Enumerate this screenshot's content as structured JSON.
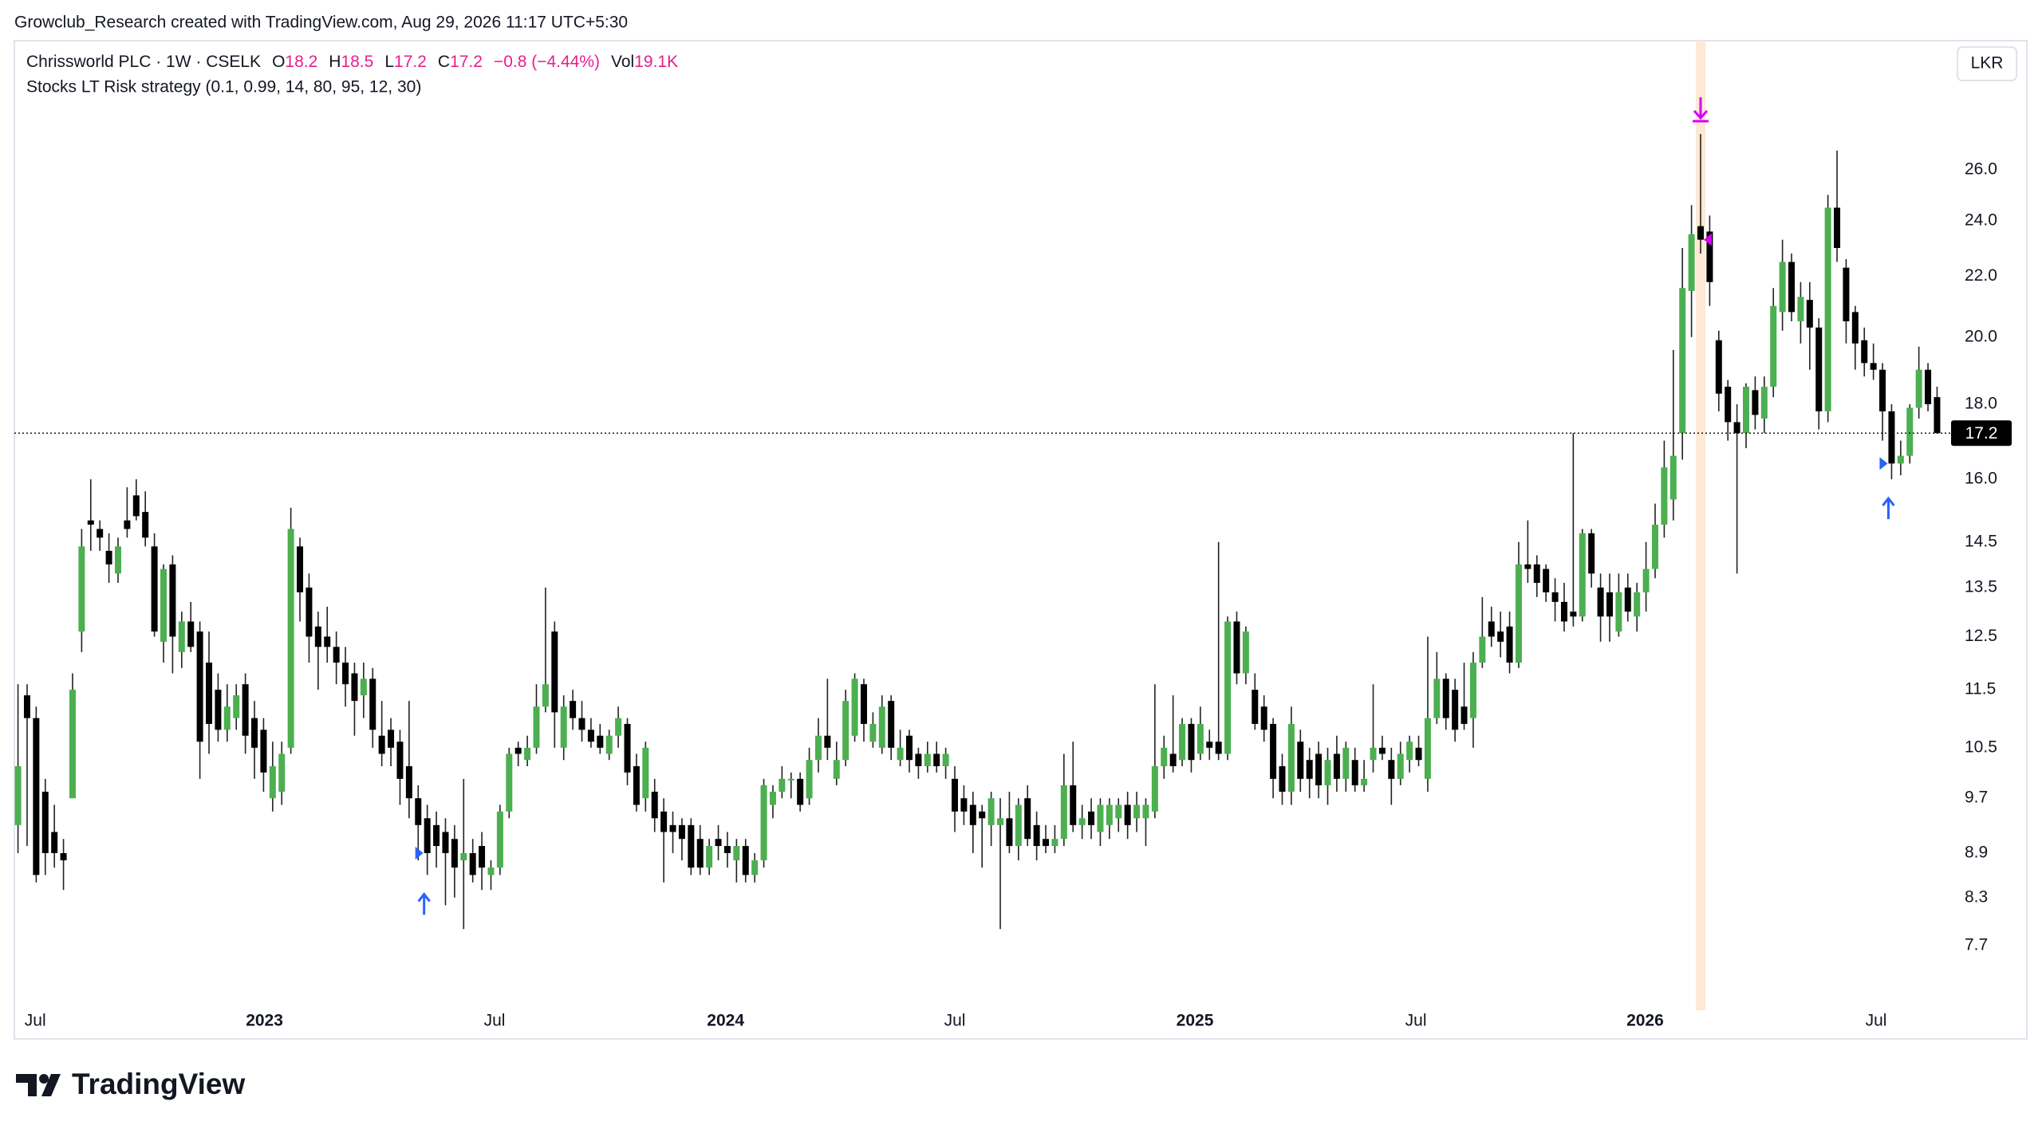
{
  "credit": "Growclub_Research created with TradingView.com, Aug 29, 2026 11:17 UTC+5:30",
  "chart_data": {
    "type": "candlestick",
    "title": "Chrissworld PLC · 1W · CSELK",
    "ohlc_labels": [
      "O",
      "H",
      "L",
      "C"
    ],
    "change": "−0.8 (−4.44%)",
    "volume_label": "Vol",
    "volume": "19.1K",
    "strategy": "Stocks LT Risk strategy (0.1, 0.99, 14, 80, 95, 12, 30)",
    "currency": "LKR",
    "log": true,
    "grid": false,
    "up_color": "#4caf50",
    "down_color": "#000000",
    "wick_color": "#222222",
    "header_value_color": "#e91e8c",
    "entry_color": "#2962ff",
    "exit_color": "#d500f9",
    "exit_band_color": "#fde9d4",
    "ylim": [
      7.07,
      31.8
    ],
    "yticks": [
      7.7,
      8.3,
      8.9,
      9.7,
      10.5,
      11.5,
      12.5,
      13.5,
      14.5,
      {
        "value": 16,
        "label": "16.0"
      },
      {
        "value": 18,
        "label": "18.0"
      },
      {
        "value": 20,
        "label": "20.0"
      },
      {
        "value": 22,
        "label": "22.0"
      },
      {
        "value": 24,
        "label": "24.0"
      },
      {
        "value": 26,
        "label": "26.0"
      }
    ],
    "xlim": [
      -0.4,
      212.1
    ],
    "xticks": [
      {
        "value": 1.9,
        "label": "Jul"
      },
      {
        "value": 27.1,
        "label": "2023"
      },
      {
        "value": 52.4,
        "label": "Jul"
      },
      {
        "value": 77.8,
        "label": "2024"
      },
      {
        "value": 103.0,
        "label": "Jul"
      },
      {
        "value": 129.4,
        "label": "2025"
      },
      {
        "value": 153.7,
        "label": "Jul"
      },
      {
        "value": 178.9,
        "label": "2026"
      },
      {
        "value": 204.3,
        "label": "Jul"
      }
    ],
    "entries": [
      45,
      206
    ],
    "exits": [
      185
    ],
    "ohlc": [
      [
        9.3,
        11.6,
        8.9,
        10.2
      ],
      [
        11.4,
        11.6,
        9.0,
        11.0
      ],
      [
        11.0,
        11.2,
        8.5,
        8.6
      ],
      [
        9.8,
        10.0,
        8.6,
        8.9
      ],
      [
        9.2,
        9.6,
        8.7,
        8.9
      ],
      [
        8.9,
        9.1,
        8.4,
        8.8
      ],
      [
        9.7,
        11.8,
        9.7,
        11.5
      ],
      [
        12.6,
        14.8,
        12.2,
        14.4
      ],
      [
        15.0,
        16.0,
        14.3,
        14.9
      ],
      [
        14.8,
        15.0,
        14.3,
        14.6
      ],
      [
        14.3,
        14.7,
        13.6,
        14.0
      ],
      [
        13.8,
        14.6,
        13.6,
        14.4
      ],
      [
        15.0,
        15.8,
        14.6,
        14.8
      ],
      [
        15.6,
        16.0,
        15.0,
        15.1
      ],
      [
        15.2,
        15.7,
        14.4,
        14.6
      ],
      [
        14.4,
        14.7,
        12.5,
        12.6
      ],
      [
        12.4,
        14.0,
        12.0,
        13.9
      ],
      [
        14.0,
        14.2,
        11.8,
        12.5
      ],
      [
        12.2,
        13.0,
        11.9,
        12.8
      ],
      [
        12.8,
        13.2,
        12.2,
        12.3
      ],
      [
        12.6,
        12.8,
        10.0,
        10.6
      ],
      [
        12.0,
        12.6,
        10.4,
        10.9
      ],
      [
        11.5,
        11.8,
        10.6,
        10.8
      ],
      [
        10.8,
        11.6,
        10.6,
        11.2
      ],
      [
        11.0,
        11.6,
        10.8,
        11.4
      ],
      [
        11.6,
        11.8,
        10.4,
        10.7
      ],
      [
        11.0,
        11.3,
        10.0,
        10.5
      ],
      [
        10.8,
        11.0,
        9.8,
        10.1
      ],
      [
        9.7,
        10.6,
        9.5,
        10.2
      ],
      [
        9.8,
        10.6,
        9.6,
        10.4
      ],
      [
        10.5,
        15.3,
        10.4,
        14.8
      ],
      [
        14.4,
        14.6,
        12.8,
        13.4
      ],
      [
        13.5,
        13.8,
        12.0,
        12.5
      ],
      [
        12.7,
        13.0,
        11.5,
        12.3
      ],
      [
        12.5,
        13.1,
        12.0,
        12.3
      ],
      [
        12.3,
        12.6,
        11.6,
        12.0
      ],
      [
        12.0,
        12.3,
        11.2,
        11.6
      ],
      [
        11.8,
        12.0,
        10.7,
        11.3
      ],
      [
        11.4,
        12.0,
        11.0,
        11.7
      ],
      [
        11.7,
        11.9,
        10.5,
        10.8
      ],
      [
        10.7,
        11.3,
        10.2,
        10.4
      ],
      [
        10.8,
        11.0,
        10.2,
        10.5
      ],
      [
        10.6,
        10.8,
        9.6,
        10.0
      ],
      [
        10.2,
        11.3,
        9.4,
        9.7
      ],
      [
        9.7,
        9.9,
        8.8,
        9.3
      ],
      [
        9.4,
        9.6,
        8.6,
        8.9
      ],
      [
        9.3,
        9.5,
        8.7,
        9.0
      ],
      [
        9.2,
        9.4,
        8.2,
        8.9
      ],
      [
        9.1,
        9.3,
        8.3,
        8.7
      ],
      [
        8.8,
        10.0,
        7.9,
        8.9
      ],
      [
        8.9,
        9.1,
        8.5,
        8.6
      ],
      [
        9.0,
        9.2,
        8.4,
        8.7
      ],
      [
        8.6,
        8.8,
        8.4,
        8.7
      ],
      [
        8.7,
        9.6,
        8.6,
        9.5
      ],
      [
        9.5,
        10.5,
        9.4,
        10.4
      ],
      [
        10.5,
        10.6,
        10.2,
        10.4
      ],
      [
        10.3,
        10.7,
        10.2,
        10.5
      ],
      [
        10.5,
        11.6,
        10.4,
        11.2
      ],
      [
        11.2,
        13.5,
        11.1,
        11.6
      ],
      [
        12.6,
        12.8,
        10.5,
        11.1
      ],
      [
        10.5,
        11.4,
        10.3,
        11.2
      ],
      [
        11.3,
        11.5,
        10.8,
        11.0
      ],
      [
        11.0,
        11.3,
        10.6,
        10.8
      ],
      [
        10.8,
        11.0,
        10.5,
        10.6
      ],
      [
        10.7,
        10.9,
        10.4,
        10.5
      ],
      [
        10.4,
        10.8,
        10.3,
        10.7
      ],
      [
        10.7,
        11.2,
        10.5,
        11.0
      ],
      [
        10.9,
        11.0,
        9.9,
        10.1
      ],
      [
        10.2,
        10.4,
        9.5,
        9.6
      ],
      [
        9.7,
        10.6,
        9.5,
        10.5
      ],
      [
        9.8,
        10.0,
        9.2,
        9.4
      ],
      [
        9.5,
        9.7,
        8.5,
        9.2
      ],
      [
        9.3,
        9.5,
        8.9,
        9.2
      ],
      [
        9.3,
        9.4,
        8.8,
        9.1
      ],
      [
        9.3,
        9.4,
        8.6,
        8.7
      ],
      [
        9.1,
        9.3,
        8.6,
        8.7
      ],
      [
        8.7,
        9.1,
        8.6,
        9.0
      ],
      [
        9.1,
        9.3,
        8.8,
        9.0
      ],
      [
        9.0,
        9.2,
        8.7,
        8.9
      ],
      [
        8.8,
        9.1,
        8.5,
        9.0
      ],
      [
        9.0,
        9.1,
        8.5,
        8.6
      ],
      [
        8.6,
        8.9,
        8.5,
        8.8
      ],
      [
        8.8,
        10.0,
        8.7,
        9.9
      ],
      [
        9.6,
        9.9,
        9.4,
        9.8
      ],
      [
        9.8,
        10.2,
        9.7,
        10.0
      ],
      [
        10.0,
        10.1,
        9.7,
        10.0
      ],
      [
        10.0,
        10.1,
        9.5,
        9.6
      ],
      [
        9.7,
        10.5,
        9.6,
        10.3
      ],
      [
        10.3,
        11.0,
        10.1,
        10.7
      ],
      [
        10.7,
        11.7,
        10.3,
        10.5
      ],
      [
        10.0,
        10.6,
        9.9,
        10.3
      ],
      [
        10.3,
        11.5,
        10.2,
        11.3
      ],
      [
        10.7,
        11.8,
        10.6,
        11.7
      ],
      [
        11.6,
        11.7,
        10.6,
        10.9
      ],
      [
        10.6,
        11.1,
        10.5,
        10.9
      ],
      [
        10.5,
        11.4,
        10.4,
        11.2
      ],
      [
        11.3,
        11.4,
        10.3,
        10.5
      ],
      [
        10.3,
        10.8,
        10.2,
        10.5
      ],
      [
        10.7,
        10.8,
        10.1,
        10.3
      ],
      [
        10.4,
        10.5,
        10.0,
        10.2
      ],
      [
        10.2,
        10.6,
        10.1,
        10.4
      ],
      [
        10.4,
        10.6,
        10.1,
        10.2
      ],
      [
        10.2,
        10.5,
        10.0,
        10.4
      ],
      [
        10.0,
        10.2,
        9.2,
        9.5
      ],
      [
        9.7,
        9.9,
        9.3,
        9.5
      ],
      [
        9.6,
        9.8,
        8.9,
        9.3
      ],
      [
        9.5,
        9.6,
        8.7,
        9.4
      ],
      [
        9.3,
        9.8,
        9.0,
        9.7
      ],
      [
        9.3,
        9.7,
        7.9,
        9.4
      ],
      [
        9.4,
        9.8,
        8.9,
        9.0
      ],
      [
        9.0,
        9.7,
        8.8,
        9.6
      ],
      [
        9.7,
        9.9,
        9.0,
        9.1
      ],
      [
        9.3,
        9.5,
        8.8,
        9.0
      ],
      [
        9.1,
        9.3,
        8.9,
        9.0
      ],
      [
        9.0,
        9.3,
        8.9,
        9.1
      ],
      [
        9.1,
        10.4,
        9.0,
        9.9
      ],
      [
        9.9,
        10.6,
        9.2,
        9.3
      ],
      [
        9.3,
        9.6,
        9.1,
        9.4
      ],
      [
        9.5,
        9.7,
        9.1,
        9.3
      ],
      [
        9.2,
        9.7,
        9.0,
        9.6
      ],
      [
        9.3,
        9.7,
        9.1,
        9.6
      ],
      [
        9.4,
        9.7,
        9.2,
        9.6
      ],
      [
        9.6,
        9.8,
        9.1,
        9.3
      ],
      [
        9.4,
        9.8,
        9.2,
        9.6
      ],
      [
        9.4,
        9.7,
        9.0,
        9.6
      ],
      [
        9.5,
        11.6,
        9.4,
        10.2
      ],
      [
        10.2,
        10.7,
        10.0,
        10.5
      ],
      [
        10.4,
        11.4,
        10.1,
        10.2
      ],
      [
        10.3,
        11.0,
        10.2,
        10.9
      ],
      [
        10.9,
        11.0,
        10.1,
        10.3
      ],
      [
        10.4,
        11.2,
        10.3,
        10.9
      ],
      [
        10.6,
        10.8,
        10.3,
        10.5
      ],
      [
        10.6,
        14.5,
        10.3,
        10.4
      ],
      [
        10.4,
        12.9,
        10.3,
        12.8
      ],
      [
        12.8,
        13.0,
        11.6,
        11.8
      ],
      [
        11.8,
        12.7,
        11.6,
        12.6
      ],
      [
        11.5,
        11.8,
        10.8,
        10.9
      ],
      [
        11.2,
        11.4,
        10.6,
        10.8
      ],
      [
        10.9,
        11.0,
        9.7,
        10.0
      ],
      [
        10.2,
        10.4,
        9.6,
        9.8
      ],
      [
        9.8,
        11.2,
        9.6,
        10.9
      ],
      [
        10.6,
        10.8,
        9.8,
        10.0
      ],
      [
        10.3,
        10.5,
        9.7,
        10.0
      ],
      [
        10.4,
        10.6,
        9.7,
        9.9
      ],
      [
        9.9,
        10.5,
        9.6,
        10.3
      ],
      [
        10.4,
        10.7,
        9.8,
        10.0
      ],
      [
        10.0,
        10.6,
        9.8,
        10.5
      ],
      [
        10.3,
        10.5,
        9.8,
        9.9
      ],
      [
        9.9,
        10.3,
        9.8,
        10.0
      ],
      [
        10.3,
        11.6,
        10.1,
        10.5
      ],
      [
        10.5,
        10.7,
        10.3,
        10.4
      ],
      [
        10.3,
        10.5,
        9.6,
        10.0
      ],
      [
        10.0,
        10.6,
        9.9,
        10.4
      ],
      [
        10.3,
        10.7,
        10.1,
        10.6
      ],
      [
        10.5,
        10.7,
        10.2,
        10.3
      ],
      [
        10.0,
        12.5,
        9.8,
        11.0
      ],
      [
        11.0,
        12.2,
        10.9,
        11.7
      ],
      [
        11.7,
        11.8,
        10.8,
        11.0
      ],
      [
        11.5,
        11.7,
        10.6,
        10.8
      ],
      [
        11.2,
        12.0,
        10.8,
        10.9
      ],
      [
        11.0,
        12.2,
        10.5,
        12.0
      ],
      [
        12.0,
        13.3,
        11.9,
        12.5
      ],
      [
        12.8,
        13.1,
        12.3,
        12.5
      ],
      [
        12.6,
        13.0,
        12.1,
        12.4
      ],
      [
        12.7,
        13.0,
        11.8,
        12.0
      ],
      [
        12.0,
        14.5,
        11.9,
        14.0
      ],
      [
        14.0,
        15.0,
        13.6,
        13.9
      ],
      [
        14.0,
        14.2,
        13.3,
        13.6
      ],
      [
        13.9,
        14.0,
        13.2,
        13.4
      ],
      [
        13.4,
        13.7,
        12.8,
        13.2
      ],
      [
        13.2,
        13.6,
        12.6,
        12.8
      ],
      [
        13.0,
        17.2,
        12.7,
        12.9
      ],
      [
        12.9,
        14.8,
        12.8,
        14.7
      ],
      [
        14.7,
        14.8,
        13.5,
        13.8
      ],
      [
        13.5,
        13.8,
        12.4,
        12.9
      ],
      [
        13.4,
        13.8,
        12.4,
        12.9
      ],
      [
        12.6,
        13.8,
        12.5,
        13.4
      ],
      [
        13.5,
        13.8,
        12.8,
        13.0
      ],
      [
        12.9,
        13.6,
        12.6,
        13.4
      ],
      [
        13.4,
        14.5,
        13.0,
        13.9
      ],
      [
        13.9,
        15.4,
        13.7,
        14.9
      ],
      [
        14.9,
        17.0,
        14.6,
        16.3
      ],
      [
        15.5,
        19.6,
        15.0,
        16.6
      ],
      [
        17.2,
        23.0,
        16.5,
        21.6
      ],
      [
        21.5,
        24.6,
        20.0,
        23.5
      ],
      [
        23.8,
        27.5,
        22.8,
        23.3
      ],
      [
        23.6,
        24.2,
        21.0,
        21.8
      ],
      [
        19.9,
        20.2,
        17.8,
        18.3
      ],
      [
        18.5,
        18.7,
        17.0,
        17.5
      ],
      [
        17.5,
        18.0,
        13.8,
        17.2
      ],
      [
        17.2,
        18.6,
        16.8,
        18.5
      ],
      [
        18.4,
        18.8,
        17.3,
        17.7
      ],
      [
        17.6,
        18.8,
        17.2,
        18.5
      ],
      [
        18.5,
        21.6,
        18.2,
        21.0
      ],
      [
        20.8,
        23.3,
        20.2,
        22.5
      ],
      [
        22.5,
        22.8,
        20.5,
        20.8
      ],
      [
        20.5,
        21.8,
        19.8,
        21.3
      ],
      [
        21.2,
        21.8,
        19.0,
        20.3
      ],
      [
        20.3,
        20.6,
        17.3,
        17.8
      ],
      [
        17.8,
        25.0,
        17.5,
        24.5
      ],
      [
        24.5,
        26.8,
        22.5,
        23.0
      ],
      [
        22.3,
        22.6,
        19.8,
        20.5
      ],
      [
        20.8,
        21.0,
        19.0,
        19.8
      ],
      [
        19.9,
        20.3,
        18.8,
        19.2
      ],
      [
        19.2,
        19.8,
        18.7,
        19.0
      ],
      [
        19.0,
        19.2,
        17.0,
        17.8
      ],
      [
        17.8,
        18.0,
        16.0,
        16.4
      ],
      [
        16.4,
        17.0,
        16.1,
        16.6
      ],
      [
        16.6,
        18.0,
        16.4,
        17.9
      ],
      [
        17.9,
        19.7,
        17.6,
        19.0
      ],
      [
        19.0,
        19.2,
        17.8,
        18.0
      ],
      [
        18.2,
        18.5,
        17.2,
        17.2
      ]
    ]
  },
  "footer": {
    "logo": "TradingView"
  }
}
